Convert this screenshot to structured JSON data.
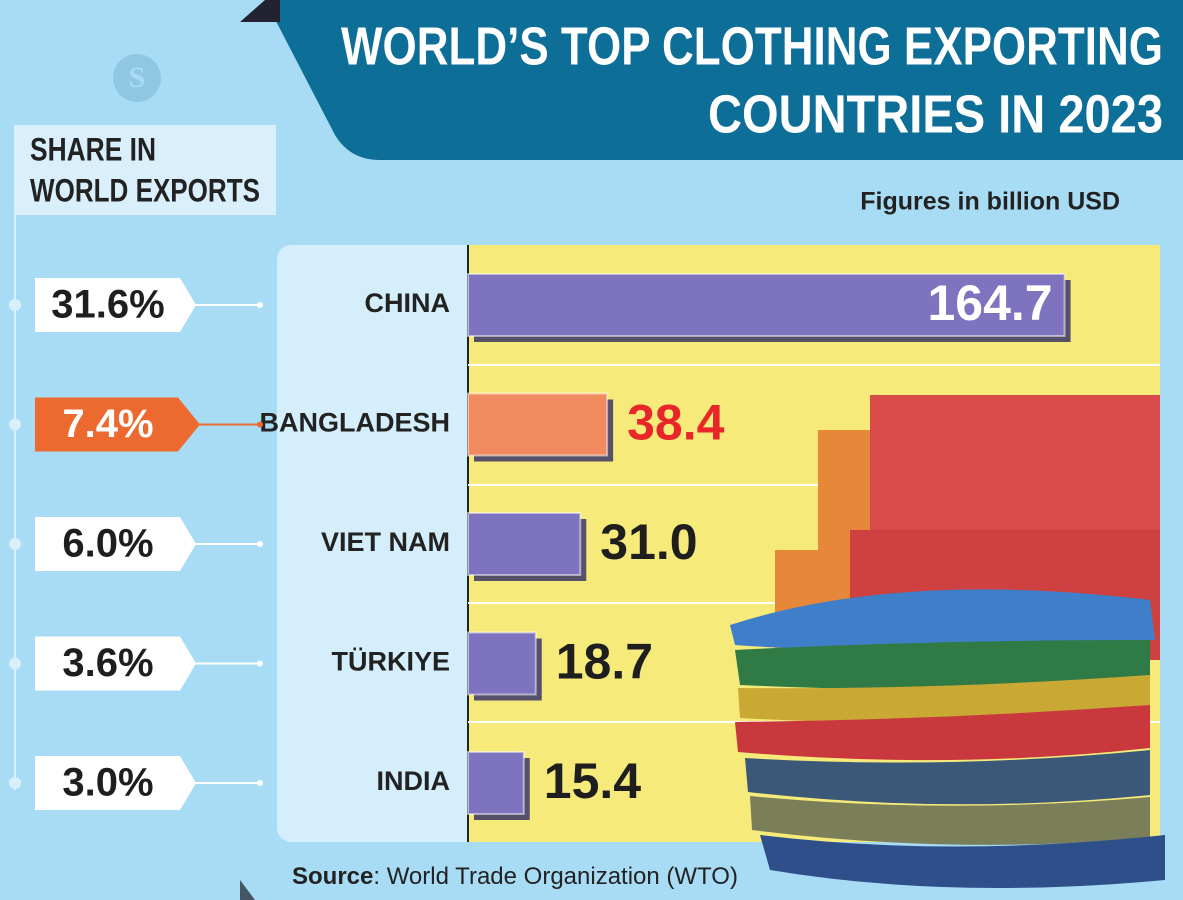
{
  "chart_data": {
    "type": "bar",
    "title": [
      "WORLD’S TOP CLOTHING EXPORTING",
      "COUNTRIES IN 2023"
    ],
    "subtitle": "Figures in billion USD",
    "share_heading": [
      "SHARE IN",
      "WORLD EXPORTS"
    ],
    "categories": [
      "CHINA",
      "BANGLADESH",
      "VIET NAM",
      "TÜRKIYE",
      "INDIA"
    ],
    "values": [
      164.7,
      38.4,
      31.0,
      18.7,
      15.4
    ],
    "value_labels": [
      "164.7",
      "38.4",
      "31.0",
      "18.7",
      "15.4"
    ],
    "colors": [
      "#7d73be",
      "#f28a5f",
      "#7d73be",
      "#7d73be",
      "#7d73be"
    ],
    "label_colors": [
      "#ffffff",
      "#e8262a",
      "#1e1e1e",
      "#1e1e1e",
      "#1e1e1e"
    ],
    "shares": [
      31.6,
      7.4,
      6.0,
      3.6,
      3.0
    ],
    "share_labels": [
      "31.6%",
      "7.4%",
      "6.0%",
      "3.6%",
      "3.0%"
    ],
    "share_box_colors": [
      "#ffffff",
      "#ec6a2f",
      "#ffffff",
      "#ffffff",
      "#ffffff"
    ],
    "share_text_colors": [
      "#1e1e1e",
      "#ffffff",
      "#1e1e1e",
      "#1e1e1e",
      "#1e1e1e"
    ],
    "xlim": [
      0,
      180
    ],
    "source_label": "Source",
    "source_text": ": World Trade Organization (WTO)"
  }
}
